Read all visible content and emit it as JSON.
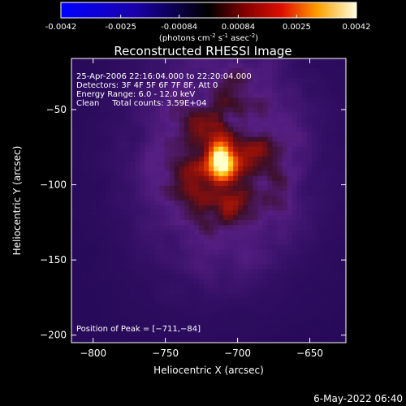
{
  "colorbar": {
    "tick_labels": [
      "-0.0042",
      "-0.0025",
      "-0.00084",
      "0.00084",
      "0.0025",
      "0.0042"
    ],
    "range": [
      -0.0042,
      0.0042
    ],
    "units_prefix": "(photons cm",
    "units_sup1": "-2",
    "units_mid": " s",
    "units_sup2": "-1",
    "units_mid2": " asec",
    "units_sup3": "-2",
    "units_suffix": ")"
  },
  "chart_data": {
    "type": "heatmap",
    "title": "Reconstructed RHESSI Image",
    "xlabel": "Heliocentric X (arcsec)",
    "ylabel": "Heliocentric Y (arcsec)",
    "xlim": [
      -815,
      -625
    ],
    "ylim": [
      -205,
      -16
    ],
    "x_ticks": [
      -800,
      -750,
      -700,
      -650
    ],
    "y_ticks": [
      -50,
      -100,
      -150,
      -200
    ],
    "x_tick_labels": [
      "−800",
      "−750",
      "−700",
      "−650"
    ],
    "y_tick_labels": [
      "−50",
      "−100",
      "−150",
      "−200"
    ],
    "peak_position": [
      -711,
      -84
    ],
    "info_lines": [
      "25-Apr-2006 22:16:04.000 to 22:20:04.000",
      "Detectors: 3F 4F 5F 6F 7F 8F, Att 0",
      "Energy Range: 6.0 - 12.0 keV",
      "Clean     Total counts: 3.59E+04"
    ],
    "peak_label": "Position of Peak = [−711,−84]"
  },
  "footer": {
    "timestamp": "6-May-2022 06:40"
  },
  "colors": {
    "background": "#000000",
    "text": "#ffffff"
  }
}
